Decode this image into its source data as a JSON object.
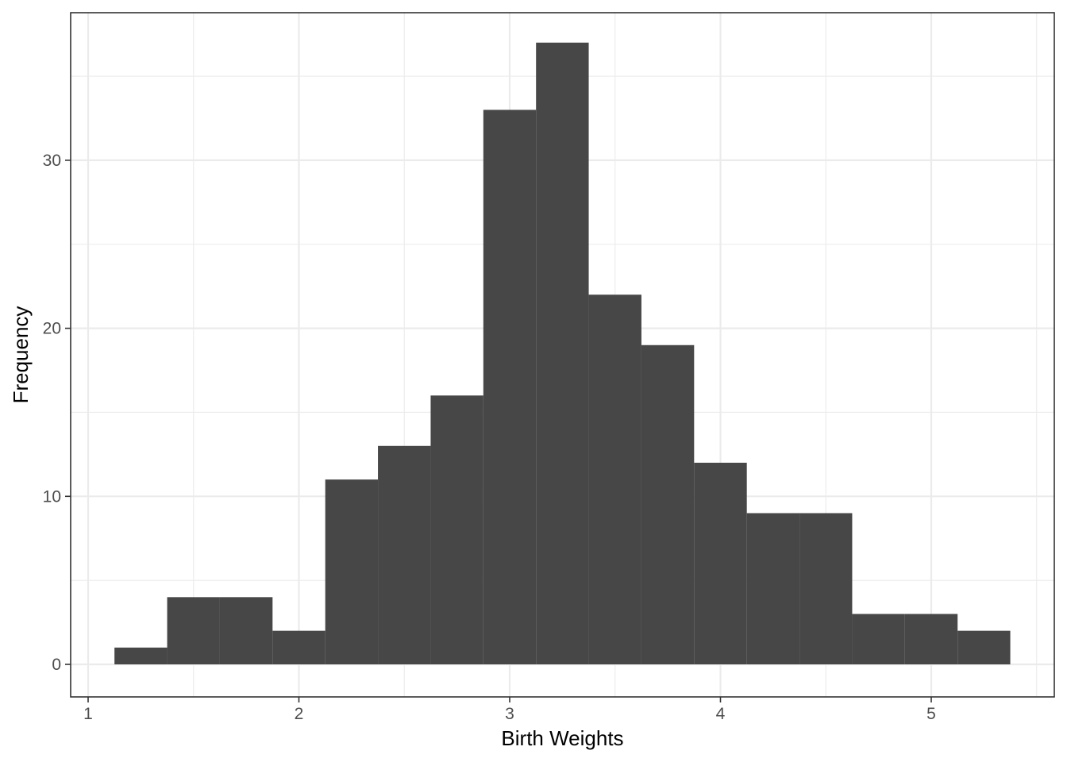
{
  "chart_data": {
    "type": "bar",
    "subtype": "histogram",
    "xlabel": "Birth Weights",
    "ylabel": "Frequency",
    "xlim": [
      1,
      5.4
    ],
    "ylim": [
      0,
      37
    ],
    "x_ticks": [
      1,
      2,
      3,
      4,
      5
    ],
    "y_ticks": [
      0,
      10,
      20,
      30
    ],
    "bin_width": 0.25,
    "bins": [
      {
        "start": 1.125,
        "end": 1.375,
        "count": 1
      },
      {
        "start": 1.375,
        "end": 1.625,
        "count": 4
      },
      {
        "start": 1.625,
        "end": 1.875,
        "count": 4
      },
      {
        "start": 1.875,
        "end": 2.125,
        "count": 2
      },
      {
        "start": 2.125,
        "end": 2.375,
        "count": 11
      },
      {
        "start": 2.375,
        "end": 2.625,
        "count": 13
      },
      {
        "start": 2.625,
        "end": 2.875,
        "count": 16
      },
      {
        "start": 2.875,
        "end": 3.125,
        "count": 33
      },
      {
        "start": 3.125,
        "end": 3.375,
        "count": 37
      },
      {
        "start": 3.375,
        "end": 3.625,
        "count": 22
      },
      {
        "start": 3.625,
        "end": 3.875,
        "count": 19
      },
      {
        "start": 3.875,
        "end": 4.125,
        "count": 12
      },
      {
        "start": 4.125,
        "end": 4.375,
        "count": 9
      },
      {
        "start": 4.375,
        "end": 4.625,
        "count": 9
      },
      {
        "start": 4.625,
        "end": 4.875,
        "count": 3
      },
      {
        "start": 4.875,
        "end": 5.125,
        "count": 3
      },
      {
        "start": 5.125,
        "end": 5.375,
        "count": 2
      }
    ],
    "bar_color": "#474747",
    "grid": true,
    "grid_color": "#ebebeb",
    "panel_border_color": "#333333",
    "legend": "none"
  }
}
